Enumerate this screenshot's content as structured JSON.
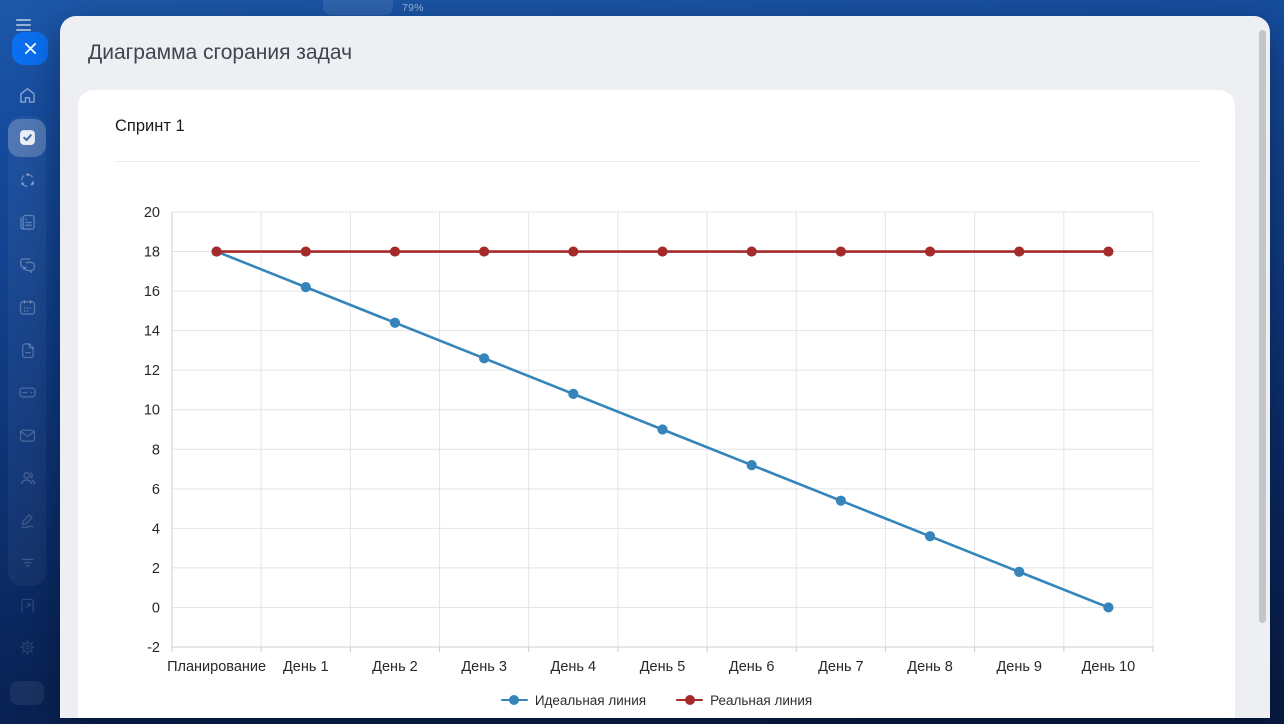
{
  "app_background": {
    "progress_label": "79%"
  },
  "topbar": {
    "menu_icon": "hamburger-icon",
    "close_icon": "close-icon"
  },
  "sidebar": {
    "items": [
      {
        "id": "home",
        "icon": "home-icon",
        "active": false
      },
      {
        "id": "tasks",
        "icon": "tasks-check-icon",
        "active": true
      },
      {
        "id": "share",
        "icon": "share-network-icon",
        "active": false
      },
      {
        "id": "notes",
        "icon": "notebook-icon",
        "active": false
      },
      {
        "id": "chat",
        "icon": "chat-bubbles-icon",
        "active": false
      },
      {
        "id": "calendar",
        "icon": "calendar-icon",
        "active": false
      },
      {
        "id": "documents",
        "icon": "document-icon",
        "active": false
      },
      {
        "id": "drive",
        "icon": "drive-icon",
        "active": false
      },
      {
        "id": "mail",
        "icon": "mail-icon",
        "active": false
      },
      {
        "id": "contacts",
        "icon": "contacts-icon",
        "active": false
      },
      {
        "id": "signature",
        "icon": "signature-pen-icon",
        "active": false
      },
      {
        "id": "filter",
        "icon": "filter-bars-icon",
        "active": false
      },
      {
        "id": "file-edit",
        "icon": "file-edit-icon",
        "active": false
      },
      {
        "id": "settings",
        "icon": "gear-icon",
        "active": false
      }
    ]
  },
  "modal": {
    "title": "Диаграмма сгорания задач",
    "card_title": "Спринт 1"
  },
  "chart_data": {
    "type": "line",
    "title": "Спринт 1",
    "categories": [
      "Планирование",
      "День 1",
      "День 2",
      "День 3",
      "День 4",
      "День 5",
      "День 6",
      "День 7",
      "День 8",
      "День 9",
      "День 10"
    ],
    "series": [
      {
        "name": "Идеальная линия",
        "color": "#3585bb",
        "marker": "circle",
        "values": [
          18,
          16.2,
          14.4,
          12.6,
          10.8,
          9,
          7.2,
          5.4,
          3.6,
          1.8,
          0
        ]
      },
      {
        "name": "Реальная линия",
        "color": "#a52a2a",
        "marker": "circle",
        "values": [
          18,
          18,
          18,
          18,
          18,
          18,
          18,
          18,
          18,
          18,
          18
        ]
      }
    ],
    "xlabel": "",
    "ylabel": "",
    "ylim": [
      -2,
      20
    ],
    "ytick_step": 2,
    "grid": true,
    "legend_position": "bottom"
  },
  "colors": {
    "accent_blue": "#0b6ff0",
    "series_ideal": "#3585bb",
    "series_real": "#a52a2a",
    "modal_bg": "#edeff2",
    "card_bg": "#ffffff",
    "grid_line": "#e2e4e8",
    "axis_line": "#c9ccd0",
    "bg_top": "#1d58a9",
    "bg_bottom": "#081b44"
  }
}
